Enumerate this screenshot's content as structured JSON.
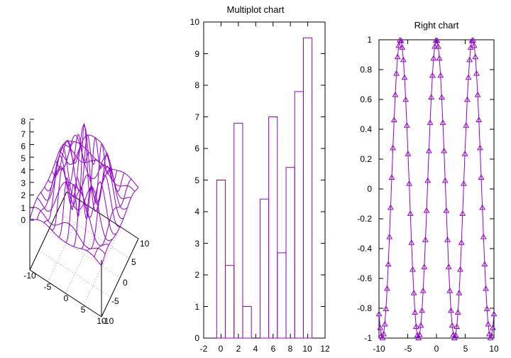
{
  "colors": {
    "series": "#9400d3",
    "axis": "#000000",
    "title_right": "#99ccff",
    "grid": "#999999"
  },
  "chart_data": [
    {
      "id": "surface",
      "type": "surface",
      "title": "",
      "x_ticks": [
        "-10",
        "-5",
        "0",
        "5",
        "10"
      ],
      "y_ticks": [
        "10",
        "5",
        "0",
        "-5",
        "-10"
      ],
      "z_ticks": [
        "0",
        "1",
        "2",
        "3",
        "4",
        "5",
        "6",
        "7",
        "8"
      ],
      "xlim": [
        -10,
        10
      ],
      "ylim": [
        -10,
        10
      ],
      "zlim": [
        0,
        8
      ],
      "grid": true
    },
    {
      "id": "bars",
      "type": "bar",
      "title": "Multiplot chart",
      "x": [
        0,
        1,
        2,
        3,
        4,
        5,
        6,
        7,
        8,
        9,
        10
      ],
      "values": [
        5,
        2.3,
        6.8,
        1,
        0,
        4.4,
        7,
        2.7,
        5.4,
        7.8,
        9.5
      ],
      "xlim": [
        -2,
        12
      ],
      "ylim": [
        0,
        10
      ],
      "x_ticks": [
        "-2",
        "0",
        "2",
        "4",
        "6",
        "8",
        "10",
        "12"
      ],
      "y_ticks": [
        "0",
        "1",
        "2",
        "3",
        "4",
        "5",
        "6",
        "7",
        "8",
        "9",
        "10"
      ],
      "grid": false
    },
    {
      "id": "right",
      "type": "line",
      "title": "Right chart",
      "function": "cos(x)",
      "xlim": [
        -10,
        10
      ],
      "ylim": [
        -1,
        1
      ],
      "x_ticks": [
        "-10",
        "-5",
        "0",
        "5",
        "10"
      ],
      "y_ticks": [
        "1",
        "0.8",
        "0.6",
        "0.4",
        "0.2",
        "0",
        "-0.2",
        "-0.4",
        "-0.6",
        "-0.8",
        "-1"
      ],
      "marker": "triangle",
      "grid": false
    }
  ]
}
